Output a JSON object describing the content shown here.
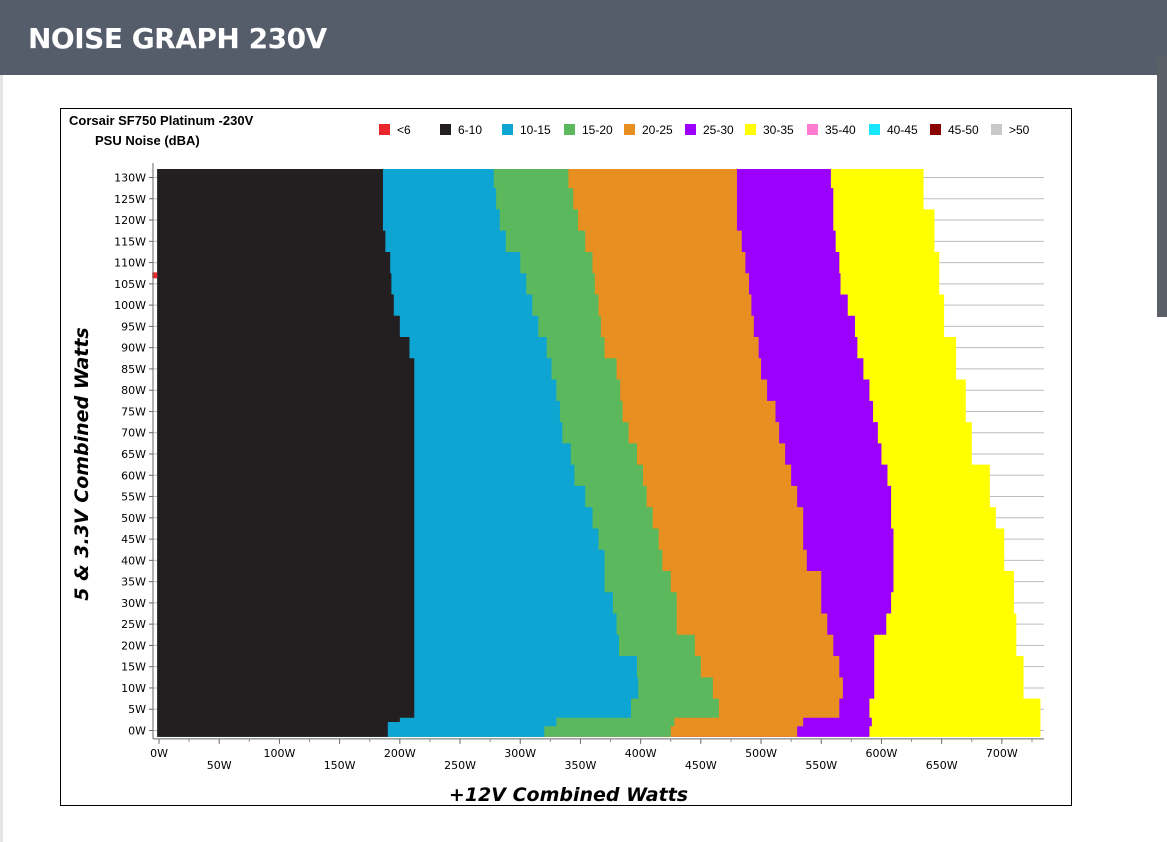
{
  "page": {
    "heading": "NOISE GRAPH 230V"
  },
  "colors": {
    "header_bg": "#565d6a",
    "scroll_thumb": "#5b5f68"
  },
  "chart_data": {
    "type": "heatmap",
    "title_line1": "Corsair SF750 Platinum -230V",
    "title_line2": "PSU Noise (dBA)",
    "xlabel": "+12V Combined Watts",
    "ylabel": "5 & 3.3V Combined Watts",
    "xlim": [
      -5,
      735
    ],
    "ylim": [
      -2,
      132
    ],
    "x_ticks_upper": [
      "0W",
      "100W",
      "200W",
      "300W",
      "400W",
      "500W",
      "600W",
      "700W"
    ],
    "x_ticks_lower": [
      "50W",
      "150W",
      "250W",
      "350W",
      "450W",
      "550W",
      "650W"
    ],
    "y_ticks": [
      "0W",
      "5W",
      "10W",
      "15W",
      "20W",
      "25W",
      "30W",
      "35W",
      "40W",
      "45W",
      "50W",
      "55W",
      "60W",
      "65W",
      "70W",
      "75W",
      "80W",
      "85W",
      "90W",
      "95W",
      "100W",
      "105W",
      "110W",
      "115W",
      "120W",
      "125W",
      "130W"
    ],
    "legend": [
      {
        "label": "<6",
        "color": "#e8262b"
      },
      {
        "label": "6-10",
        "color": "#231f20"
      },
      {
        "label": "10-15",
        "color": "#0ea5d2"
      },
      {
        "label": "15-20",
        "color": "#5cb85c"
      },
      {
        "label": "20-25",
        "color": "#e78f20"
      },
      {
        "label": "25-30",
        "color": "#9b00ff"
      },
      {
        "label": "30-35",
        "color": "#ffff00"
      },
      {
        "label": "35-40",
        "color": "#ff7ad1"
      },
      {
        "label": "40-45",
        "color": "#18e6ff"
      },
      {
        "label": "45-50",
        "color": "#8b0000"
      },
      {
        "label": ">50",
        "color": "#c8c8c8"
      }
    ],
    "band_order": [
      "6-10",
      "10-15",
      "15-20",
      "20-25",
      "25-30",
      "30-35"
    ],
    "rows_y": [
      0,
      5,
      10,
      15,
      20,
      25,
      30,
      35,
      40,
      45,
      50,
      55,
      60,
      65,
      70,
      75,
      80,
      85,
      90,
      95,
      100,
      105,
      110,
      115,
      120,
      125,
      130
    ],
    "band_upper_x": {
      "6-10": [
        190,
        212,
        212,
        212,
        212,
        212,
        212,
        212,
        212,
        212,
        212,
        212,
        212,
        212,
        212,
        212,
        212,
        212,
        208,
        200,
        195,
        193,
        192,
        188,
        186,
        186,
        186
      ],
      "10-15": [
        320,
        392,
        398,
        397,
        382,
        380,
        377,
        370,
        370,
        365,
        360,
        354,
        345,
        342,
        335,
        333,
        330,
        326,
        322,
        315,
        310,
        305,
        300,
        288,
        283,
        280,
        278
      ],
      "15-20": [
        425,
        465,
        460,
        450,
        445,
        430,
        430,
        425,
        418,
        415,
        410,
        405,
        402,
        397,
        390,
        385,
        383,
        380,
        370,
        367,
        365,
        362,
        360,
        354,
        348,
        344,
        340
      ],
      "20-25": [
        530,
        565,
        568,
        565,
        560,
        555,
        550,
        550,
        538,
        535,
        535,
        530,
        525,
        520,
        515,
        512,
        505,
        500,
        498,
        494,
        492,
        490,
        487,
        484,
        480,
        480,
        480
      ],
      "25-30": [
        590,
        590,
        594,
        594,
        594,
        604,
        608,
        610,
        610,
        610,
        608,
        608,
        605,
        600,
        597,
        593,
        590,
        585,
        580,
        578,
        572,
        566,
        565,
        562,
        560,
        560,
        558
      ],
      "30-35": [
        732,
        732,
        718,
        718,
        712,
        712,
        710,
        710,
        702,
        702,
        695,
        690,
        690,
        675,
        675,
        670,
        670,
        662,
        662,
        652,
        652,
        648,
        648,
        644,
        644,
        635,
        635
      ]
    },
    "band_mid_steps": {
      "6-10": [
        [
          200,
          2
        ],
        [
          212,
          3
        ]
      ],
      "10-15": [
        [
          330,
          1
        ],
        [
          392,
          3
        ]
      ],
      "15-20": [
        [
          428,
          1
        ],
        [
          465,
          3
        ]
      ],
      "20-25": [
        [
          535,
          1
        ],
        [
          565,
          3
        ]
      ],
      "25-30": [
        [
          592,
          1
        ],
        [
          590,
          3
        ]
      ],
      "30-35": [
        [
          732,
          1
        ],
        [
          732,
          3
        ]
      ]
    },
    "marker": {
      "x": -4,
      "y": 107,
      "series": "<6"
    },
    "grid": "horizontal",
    "legend_position": "top"
  }
}
